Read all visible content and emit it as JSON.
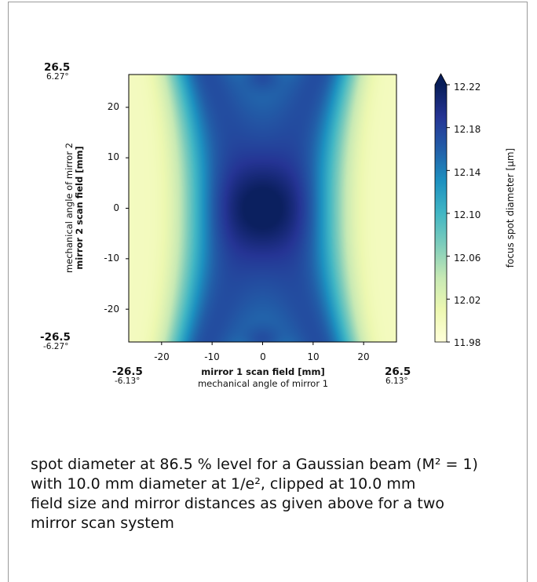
{
  "chart_data": {
    "type": "heatmap",
    "xlabel": "mirror 1 scan field [mm]",
    "xlabel_secondary": "mechanical angle of mirror 1",
    "ylabel": "mirror 2 scan field [mm]",
    "ylabel_secondary": "mechanical angle of mirror 2",
    "xlim": [
      -26.5,
      26.5
    ],
    "ylim": [
      -26.5,
      26.5
    ],
    "x_ticks": [
      -20,
      -10,
      0,
      10,
      20
    ],
    "y_ticks": [
      -20,
      -10,
      0,
      10,
      20
    ],
    "x_min_label": "-26.5",
    "x_min_angle": "-6.13°",
    "x_max_label": "26.5",
    "x_max_angle": "6.13°",
    "y_min_label": "-26.5",
    "y_min_angle": "-6.27°",
    "y_max_label": "26.5",
    "y_max_angle": "6.27°",
    "colorbar": {
      "label": "focus spot diameter [μm]",
      "min": 11.98,
      "max": 12.22,
      "ticks": [
        "12.22",
        "12.18",
        "12.14",
        "12.10",
        "12.06",
        "12.02",
        "11.98"
      ],
      "extend": "max",
      "colormap": "YlGnBu"
    },
    "colors": [
      "#ffffd9",
      "#edf8b1",
      "#c7e9b4",
      "#7fcdbb",
      "#41b6c4",
      "#1d91c0",
      "#225ea8",
      "#253494",
      "#081d58"
    ]
  },
  "caption": {
    "line1": "spot diameter at 86.5 % level for a Gaussian beam (M² = 1)",
    "line2": "with 10.0 mm diameter at 1/e², clipped at 10.0  mm",
    "line3": "field size and mirror distances as given above for a two",
    "line4": "mirror scan system"
  }
}
